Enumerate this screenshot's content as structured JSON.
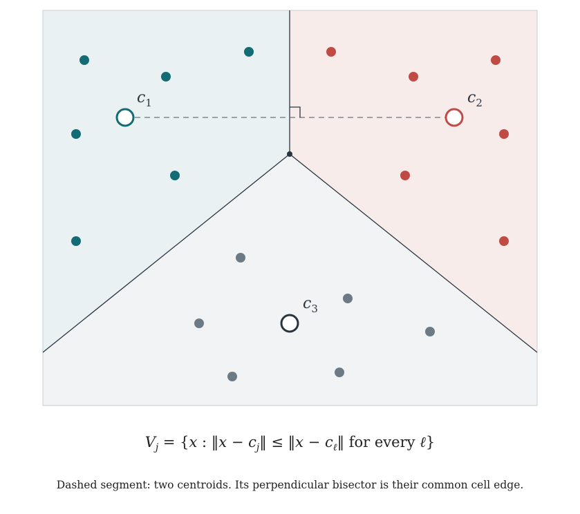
{
  "colors": {
    "region_1": "#eaf1f3",
    "region_2": "#f8eceb",
    "region_3": "#f1f3f4",
    "points_1": "#136b73",
    "points_2": "#c04b45",
    "points_3": "#6b7a84",
    "edges": "#2a3440",
    "frame": "#c8cdd0"
  },
  "centroids": [
    {
      "name": "c",
      "sub": "1",
      "color": "#136b73"
    },
    {
      "name": "c",
      "sub": "2",
      "color": "#c04b45"
    },
    {
      "name": "c",
      "sub": "3",
      "color": "#2a3440"
    }
  ],
  "formula": {
    "lhs": "V",
    "lhs_sub": "j",
    "text_a": " = {",
    "var_x": "x",
    "text_b": " : ‖",
    "var_x2": "x",
    "text_c": " − ",
    "var_c": "c",
    "sub_j": "j",
    "text_d": "‖ ≤ ‖",
    "var_x3": "x",
    "text_e": " − ",
    "var_c2": "c",
    "sub_l": "ℓ",
    "text_f": "‖ for every ",
    "var_l": "ℓ",
    "text_g": "}"
  },
  "caption": "Dashed segment: two centroids. Its perpendicular bisector is their common cell edge."
}
